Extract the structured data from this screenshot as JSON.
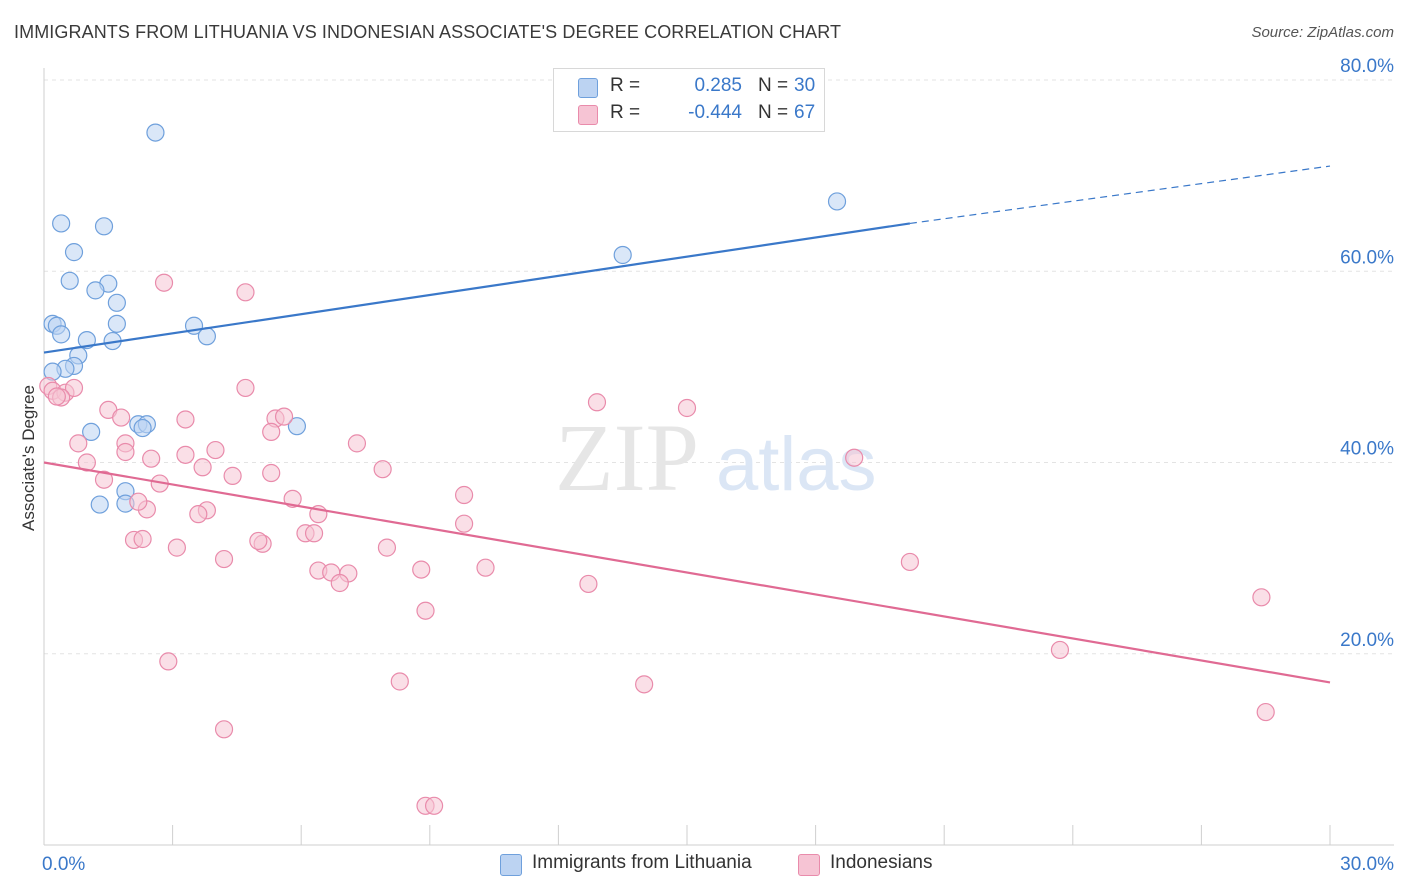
{
  "title": "IMMIGRANTS FROM LITHUANIA VS INDONESIAN ASSOCIATE'S DEGREE CORRELATION CHART",
  "source": "Source: ZipAtlas.com",
  "watermark": {
    "zip": "ZIP",
    "atlas": "atlas"
  },
  "legend": {
    "r_label": "R =",
    "n_label": "N =",
    "rows": [
      {
        "r": "0.285",
        "n": "30",
        "fill": "#bcd3f2",
        "stroke": "#6fa0dc"
      },
      {
        "r": "-0.444",
        "n": "67",
        "fill": "#f6c4d4",
        "stroke": "#e98bab"
      }
    ]
  },
  "chart_data": {
    "type": "scatter",
    "title": "IMMIGRANTS FROM LITHUANIA VS INDONESIAN ASSOCIATE'S DEGREE CORRELATION CHART",
    "xlabel": "",
    "ylabel": "Associate's Degree",
    "xlim": [
      0,
      30
    ],
    "ylim": [
      0,
      80
    ],
    "x_ticks": [
      "0.0%",
      "30.0%"
    ],
    "y_ticks": [
      {
        "value": 20,
        "label": "20.0%"
      },
      {
        "value": 40,
        "label": "40.0%"
      },
      {
        "value": 60,
        "label": "60.0%"
      },
      {
        "value": 80,
        "label": "80.0%"
      }
    ],
    "grid": true,
    "legend_position": "top-center",
    "series": [
      {
        "name": "Immigrants from Lithuania",
        "color": "#3a78c9",
        "fill": "#bcd3f2",
        "stroke": "#6fa0dc",
        "trend": {
          "x": [
            0,
            20.2
          ],
          "y": [
            51.5,
            65.0
          ],
          "dash_to": [
            30,
            71.0
          ]
        },
        "points": [
          [
            2.6,
            74.5
          ],
          [
            0.4,
            65.0
          ],
          [
            1.4,
            64.7
          ],
          [
            0.7,
            62.0
          ],
          [
            0.6,
            59.0
          ],
          [
            1.5,
            58.7
          ],
          [
            1.2,
            58.0
          ],
          [
            1.7,
            56.7
          ],
          [
            1.7,
            54.5
          ],
          [
            0.2,
            54.5
          ],
          [
            0.3,
            54.3
          ],
          [
            3.5,
            54.3
          ],
          [
            0.4,
            53.4
          ],
          [
            1.0,
            52.8
          ],
          [
            1.6,
            52.7
          ],
          [
            3.8,
            53.2
          ],
          [
            0.8,
            51.2
          ],
          [
            0.7,
            50.1
          ],
          [
            0.5,
            49.8
          ],
          [
            0.2,
            49.5
          ],
          [
            2.2,
            44.0
          ],
          [
            2.4,
            44.0
          ],
          [
            2.3,
            43.6
          ],
          [
            5.9,
            43.8
          ],
          [
            1.1,
            43.2
          ],
          [
            1.9,
            37.0
          ],
          [
            1.9,
            35.7
          ],
          [
            1.3,
            35.6
          ],
          [
            13.5,
            61.7
          ],
          [
            18.5,
            67.3
          ]
        ]
      },
      {
        "name": "Indonesians",
        "color": "#e06a93",
        "fill": "#f6c4d4",
        "stroke": "#e98bab",
        "trend": {
          "x": [
            0,
            30
          ],
          "y": [
            40.0,
            17.0
          ]
        },
        "points": [
          [
            0.1,
            48.0
          ],
          [
            0.2,
            47.5
          ],
          [
            0.5,
            47.3
          ],
          [
            0.7,
            47.8
          ],
          [
            0.4,
            46.8
          ],
          [
            0.3,
            46.9
          ],
          [
            1.5,
            45.5
          ],
          [
            1.8,
            44.7
          ],
          [
            3.3,
            44.5
          ],
          [
            5.4,
            44.6
          ],
          [
            5.6,
            44.8
          ],
          [
            4.7,
            47.8
          ],
          [
            4.7,
            57.8
          ],
          [
            2.8,
            58.8
          ],
          [
            1.9,
            42.0
          ],
          [
            0.8,
            42.0
          ],
          [
            2.5,
            40.4
          ],
          [
            3.3,
            40.8
          ],
          [
            4.0,
            41.3
          ],
          [
            3.7,
            39.5
          ],
          [
            4.4,
            38.6
          ],
          [
            5.3,
            38.9
          ],
          [
            5.3,
            43.2
          ],
          [
            1.9,
            41.1
          ],
          [
            1.0,
            40.0
          ],
          [
            1.4,
            38.2
          ],
          [
            2.7,
            37.8
          ],
          [
            2.4,
            35.1
          ],
          [
            3.8,
            35.0
          ],
          [
            3.6,
            34.6
          ],
          [
            5.8,
            36.2
          ],
          [
            6.4,
            34.6
          ],
          [
            6.1,
            32.6
          ],
          [
            6.3,
            32.6
          ],
          [
            7.3,
            42.0
          ],
          [
            7.9,
            39.3
          ],
          [
            9.8,
            36.6
          ],
          [
            9.8,
            33.6
          ],
          [
            8.0,
            31.1
          ],
          [
            5.1,
            31.5
          ],
          [
            5.0,
            31.8
          ],
          [
            3.1,
            31.1
          ],
          [
            2.1,
            31.9
          ],
          [
            2.3,
            32.0
          ],
          [
            4.2,
            29.9
          ],
          [
            6.4,
            28.7
          ],
          [
            6.7,
            28.5
          ],
          [
            7.1,
            28.4
          ],
          [
            6.9,
            27.4
          ],
          [
            8.8,
            28.8
          ],
          [
            10.3,
            29.0
          ],
          [
            12.7,
            27.3
          ],
          [
            8.9,
            24.5
          ],
          [
            12.9,
            46.3
          ],
          [
            15.0,
            45.7
          ],
          [
            18.9,
            40.5
          ],
          [
            20.2,
            29.6
          ],
          [
            23.7,
            20.4
          ],
          [
            28.4,
            25.9
          ],
          [
            28.5,
            13.9
          ],
          [
            14.0,
            16.8
          ],
          [
            8.3,
            17.1
          ],
          [
            2.9,
            19.2
          ],
          [
            4.2,
            12.1
          ],
          [
            8.9,
            4.1
          ],
          [
            9.1,
            4.1
          ],
          [
            2.2,
            35.9
          ]
        ]
      }
    ]
  }
}
